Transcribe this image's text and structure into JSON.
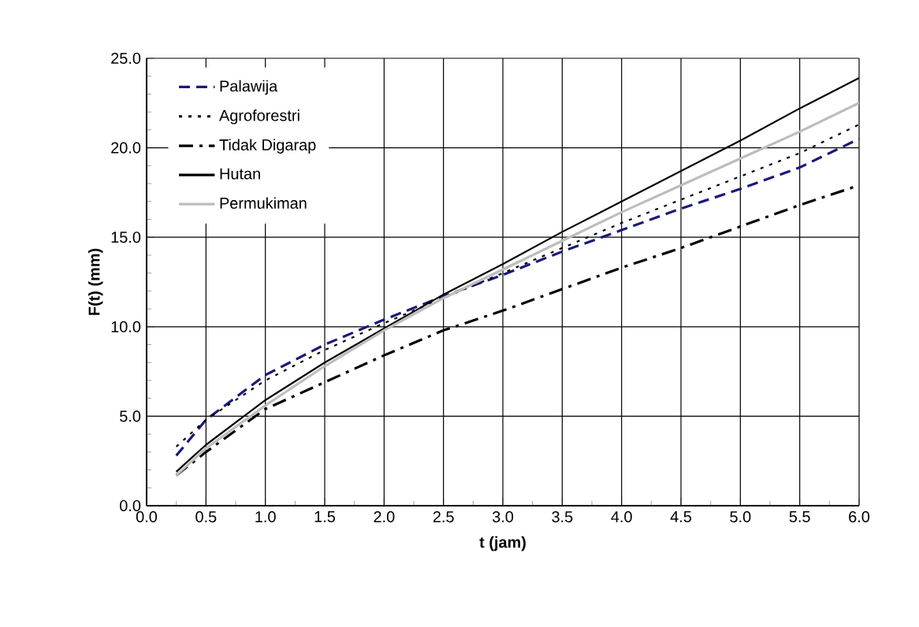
{
  "chart_data": {
    "type": "line",
    "xlabel": "t  (jam)",
    "ylabel": "F(t) (mm)",
    "x": [
      0.25,
      0.5,
      1,
      1.5,
      2,
      2.5,
      3,
      3.5,
      4,
      4.5,
      5,
      5.5,
      6
    ],
    "series": [
      {
        "name": "Palawija",
        "color": "#1a1a7a",
        "line_style": "dashed",
        "values": [
          2.8,
          4.8,
          7.3,
          9.0,
          10.4,
          11.7,
          12.9,
          14.2,
          15.4,
          16.6,
          17.7,
          18.9,
          20.5
        ]
      },
      {
        "name": "Agroforestri",
        "color": "#000000",
        "line_style": "dotted",
        "values": [
          3.3,
          4.8,
          7.0,
          8.7,
          10.2,
          11.6,
          13.0,
          14.4,
          15.8,
          17.1,
          18.4,
          19.7,
          21.3
        ]
      },
      {
        "name": "Tidak Digarap",
        "color": "#000000",
        "line_style": "dashdot",
        "values": [
          1.7,
          3.0,
          5.4,
          6.9,
          8.4,
          9.8,
          10.9,
          12.1,
          13.3,
          14.4,
          15.6,
          16.8,
          17.9
        ]
      },
      {
        "name": "Hutan",
        "color": "#000000",
        "line_style": "solid",
        "values": [
          1.9,
          3.4,
          5.9,
          8.0,
          9.9,
          11.8,
          13.5,
          15.3,
          17.0,
          18.7,
          20.4,
          22.2,
          23.9
        ]
      },
      {
        "name": "Permukiman",
        "color": "#bdbdbd",
        "line_style": "solid",
        "values": [
          1.7,
          3.2,
          5.6,
          7.8,
          9.8,
          11.6,
          13.2,
          14.8,
          16.4,
          17.9,
          19.4,
          20.9,
          22.5
        ]
      }
    ],
    "xlim": [
      0,
      6
    ],
    "ylim": [
      0,
      25
    ],
    "xticks": [
      {
        "value": 0,
        "label": "0.0"
      },
      {
        "value": 0.5,
        "label": "0.5"
      },
      {
        "value": 1,
        "label": "1.0"
      },
      {
        "value": 1.5,
        "label": "1.5"
      },
      {
        "value": 2,
        "label": "2.0"
      },
      {
        "value": 2.5,
        "label": "2.5"
      },
      {
        "value": 3,
        "label": "3.0"
      },
      {
        "value": 3.5,
        "label": "3.5"
      },
      {
        "value": 4,
        "label": "4.0"
      },
      {
        "value": 4.5,
        "label": "4.5"
      },
      {
        "value": 5,
        "label": "5.0"
      },
      {
        "value": 5.5,
        "label": "5.5"
      },
      {
        "value": 6,
        "label": "6.0"
      }
    ],
    "yticks": [
      {
        "value": 0,
        "label": "0.0"
      },
      {
        "value": 5,
        "label": "5.0"
      },
      {
        "value": 10,
        "label": "10.0"
      },
      {
        "value": 15,
        "label": "15.0"
      },
      {
        "value": 20,
        "label": "20.0"
      },
      {
        "value": 25,
        "label": "25.0"
      }
    ],
    "grid": true,
    "legend": "top left"
  }
}
